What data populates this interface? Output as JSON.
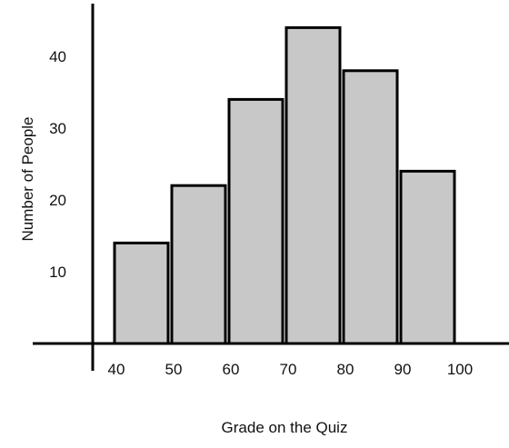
{
  "chart_data": {
    "type": "bar",
    "title": "",
    "xlabel": "Grade on the Quiz",
    "ylabel": "Number of People",
    "bins": [
      {
        "start": 40,
        "end": 50,
        "value": 14
      },
      {
        "start": 50,
        "end": 60,
        "value": 22
      },
      {
        "start": 60,
        "end": 70,
        "value": 34
      },
      {
        "start": 70,
        "end": 80,
        "value": 44
      },
      {
        "start": 80,
        "end": 90,
        "value": 38
      },
      {
        "start": 90,
        "end": 100,
        "value": 24
      }
    ],
    "x_ticks": [
      "40",
      "50",
      "60",
      "70",
      "80",
      "90",
      "100"
    ],
    "y_ticks": [
      10,
      20,
      30,
      40
    ],
    "ylim": [
      0,
      47
    ],
    "grid": false,
    "colors": {
      "bar_fill": "#c8c8c8",
      "bar_stroke": "#000000",
      "axis": "#000000"
    }
  }
}
